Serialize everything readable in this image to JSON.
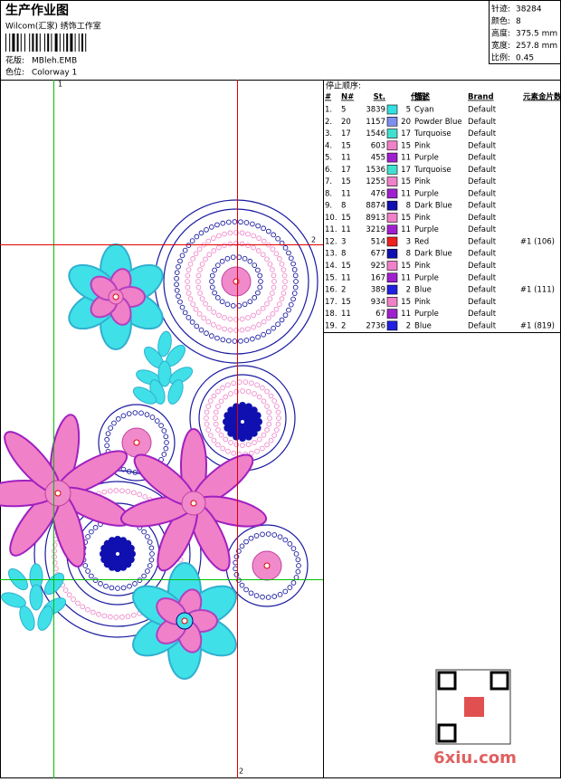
{
  "header": {
    "title": "生产作业图",
    "company": "Wilcom(汇家) 绣饰工作室",
    "design_label": "花版:",
    "design": "MBleh.EMB",
    "colorway_label": "色位:",
    "colorway": "Colorway 1"
  },
  "stats": [
    [
      "针迹:",
      "38284"
    ],
    [
      "颜色:",
      "8"
    ],
    [
      "高度:",
      "375.5 mm"
    ],
    [
      "宽度:",
      "257.8 mm"
    ],
    [
      "比例:",
      "0.45"
    ]
  ],
  "guides": {
    "v_green": "1",
    "h_red": "2",
    "v_red": "2"
  },
  "table": {
    "title": "停止顺序:",
    "columns": [
      "#",
      "N#",
      "St.",
      "代码",
      "描述",
      "Brand",
      "元素",
      "金片数"
    ],
    "rows": [
      {
        "cells": [
          "1.",
          "5",
          "3839",
          "5",
          "Cyan",
          "Default",
          ""
        ],
        "color": "#33e0e0"
      },
      {
        "cells": [
          "2.",
          "20",
          "1157",
          "20",
          "Powder Blue",
          "Default",
          ""
        ],
        "color": "#7f8fef"
      },
      {
        "cells": [
          "3.",
          "17",
          "1546",
          "17",
          "Turquoise",
          "Default",
          ""
        ],
        "color": "#40e0d0"
      },
      {
        "cells": [
          "4.",
          "15",
          "603",
          "15",
          "Pink",
          "Default",
          ""
        ],
        "color": "#f080c8"
      },
      {
        "cells": [
          "5.",
          "11",
          "455",
          "11",
          "Purple",
          "Default",
          ""
        ],
        "color": "#a020d0"
      },
      {
        "cells": [
          "6.",
          "17",
          "1536",
          "17",
          "Turquoise",
          "Default",
          ""
        ],
        "color": "#40e0d0"
      },
      {
        "cells": [
          "7.",
          "15",
          "1255",
          "15",
          "Pink",
          "Default",
          ""
        ],
        "color": "#f080c8"
      },
      {
        "cells": [
          "8.",
          "11",
          "476",
          "11",
          "Purple",
          "Default",
          ""
        ],
        "color": "#a020d0"
      },
      {
        "cells": [
          "9.",
          "8",
          "8874",
          "8",
          "Dark Blue",
          "Default",
          ""
        ],
        "color": "#1010b0"
      },
      {
        "cells": [
          "10.",
          "15",
          "8913",
          "15",
          "Pink",
          "Default",
          ""
        ],
        "color": "#f080c8"
      },
      {
        "cells": [
          "11.",
          "11",
          "3219",
          "11",
          "Purple",
          "Default",
          ""
        ],
        "color": "#a020d0"
      },
      {
        "cells": [
          "12.",
          "3",
          "514",
          "3",
          "Red",
          "Default",
          "#1 (106)"
        ],
        "color": "#f02020"
      },
      {
        "cells": [
          "13.",
          "8",
          "677",
          "8",
          "Dark Blue",
          "Default",
          ""
        ],
        "color": "#1010b0"
      },
      {
        "cells": [
          "14.",
          "15",
          "925",
          "15",
          "Pink",
          "Default",
          ""
        ],
        "color": "#f080c8"
      },
      {
        "cells": [
          "15.",
          "11",
          "167",
          "11",
          "Purple",
          "Default",
          ""
        ],
        "color": "#a020d0"
      },
      {
        "cells": [
          "16.",
          "2",
          "389",
          "2",
          "Blue",
          "Default",
          "#1 (111)"
        ],
        "color": "#2020e0"
      },
      {
        "cells": [
          "17.",
          "15",
          "934",
          "15",
          "Pink",
          "Default",
          ""
        ],
        "color": "#f080c8"
      },
      {
        "cells": [
          "18.",
          "11",
          "67",
          "11",
          "Purple",
          "Default",
          ""
        ],
        "color": "#a020d0"
      },
      {
        "cells": [
          "19.",
          "2",
          "2736",
          "2",
          "Blue",
          "Default",
          "#1 (819)"
        ],
        "color": "#2020e0"
      }
    ]
  },
  "watermark": "6xiu.com"
}
